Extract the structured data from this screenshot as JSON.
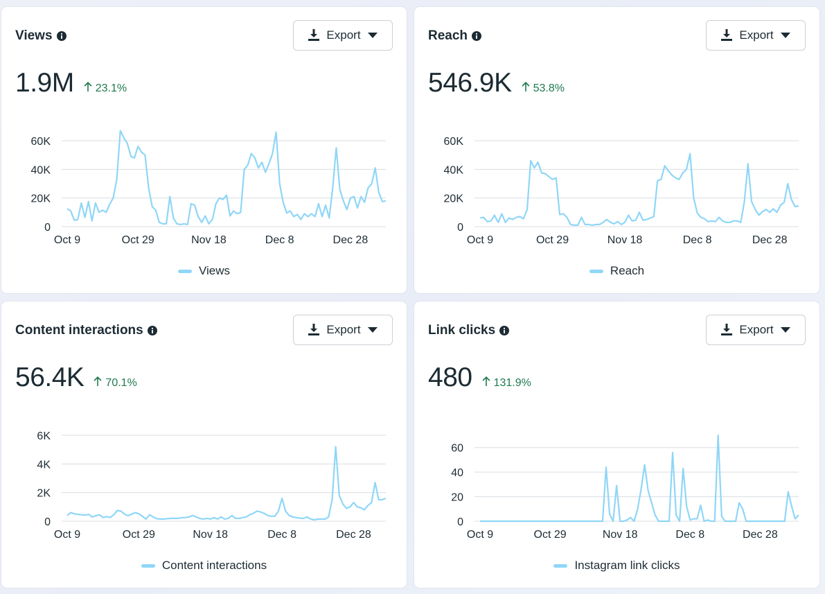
{
  "colors": {
    "line": "#8fd6f7",
    "grid": "#dadde1",
    "positive": "#1d7a4f"
  },
  "cards": [
    {
      "title": "Views",
      "export_label": "Export",
      "value": "1.9M",
      "change": "23.1%",
      "legend": "Views",
      "chart_data": {
        "type": "line",
        "ymax": 60000,
        "yticks": [
          0,
          20000,
          40000,
          60000
        ],
        "ytick_labels": [
          "0",
          "20K",
          "40K",
          "60K"
        ],
        "xtick_labels": [
          "Oct 9",
          "Oct 29",
          "Nov 18",
          "Dec 8",
          "Dec 28"
        ],
        "xtick_index": [
          0,
          20,
          40,
          60,
          80
        ],
        "series": [
          {
            "name": "Views",
            "values": [
              12500,
              11000,
              4500,
              5000,
              16500,
              6500,
              17500,
              4000,
              16500,
              10000,
              11500,
              10000,
              15500,
              20000,
              33000,
              67000,
              62000,
              58000,
              49000,
              48000,
              56000,
              52000,
              50000,
              27000,
              14000,
              11500,
              3000,
              2000,
              2000,
              21000,
              6000,
              2000,
              1500,
              2000,
              1500,
              16000,
              15000,
              7000,
              3000,
              7500,
              2000,
              5000,
              16000,
              20000,
              19000,
              22000,
              7500,
              11000,
              9000,
              10000,
              40000,
              43000,
              51000,
              48000,
              41000,
              45000,
              38000,
              44000,
              51000,
              66000,
              30000,
              17000,
              9500,
              11000,
              7000,
              8500,
              5000,
              9000,
              7000,
              9000,
              7000,
              16000,
              7000,
              15000,
              6000,
              27000,
              55000,
              26000,
              18000,
              12000,
              20000,
              21000,
              13000,
              21000,
              17000,
              27000,
              30000,
              41000,
              24000,
              17500,
              18000
            ]
          }
        ]
      }
    },
    {
      "title": "Reach",
      "export_label": "Export",
      "value": "546.9K",
      "change": "53.8%",
      "legend": "Reach",
      "chart_data": {
        "type": "line",
        "ymax": 60000,
        "yticks": [
          0,
          20000,
          40000,
          60000
        ],
        "ytick_labels": [
          "0",
          "20K",
          "40K",
          "60K"
        ],
        "xtick_labels": [
          "Oct 9",
          "Oct 29",
          "Nov 18",
          "Dec 8",
          "Dec 28"
        ],
        "xtick_index": [
          0,
          20,
          40,
          60,
          80
        ],
        "series": [
          {
            "name": "Reach",
            "values": [
              6000,
              6500,
              3500,
              4000,
              8000,
              3000,
              9000,
              3000,
              6000,
              5000,
              6500,
              7000,
              5500,
              12000,
              46000,
              41000,
              45000,
              37500,
              37000,
              35000,
              33000,
              34000,
              8500,
              9000,
              6500,
              1500,
              1000,
              1000,
              6500,
              1500,
              1500,
              1000,
              1500,
              1500,
              3000,
              5000,
              3000,
              2000,
              3500,
              1500,
              3000,
              8000,
              4000,
              4500,
              10000,
              4500,
              5000,
              6000,
              7000,
              32000,
              33000,
              42500,
              39000,
              36000,
              34000,
              33000,
              37500,
              40000,
              51000,
              20000,
              9500,
              6500,
              5500,
              3500,
              4000,
              3500,
              6500,
              4000,
              3000,
              3000,
              4000,
              4000,
              3000,
              17500,
              44000,
              17500,
              12000,
              8000,
              10500,
              12000,
              10000,
              12500,
              10000,
              15000,
              17000,
              30000,
              19000,
              14000,
              14500
            ]
          }
        ]
      }
    },
    {
      "title": "Content interactions",
      "export_label": "Export",
      "value": "56.4K",
      "change": "70.1%",
      "legend": "Content interactions",
      "chart_data": {
        "type": "line",
        "ymax": 6000,
        "yticks": [
          0,
          2000,
          4000,
          6000
        ],
        "ytick_labels": [
          "0",
          "2K",
          "4K",
          "6K"
        ],
        "xtick_labels": [
          "Oct 9",
          "Oct 29",
          "Nov 18",
          "Dec 8",
          "Dec 28"
        ],
        "xtick_index": [
          0,
          20,
          40,
          60,
          80
        ],
        "series": [
          {
            "name": "Content interactions",
            "values": [
              400,
              600,
              520,
              480,
              450,
              420,
              480,
              300,
              380,
              450,
              260,
              320,
              260,
              450,
              750,
              700,
              500,
              380,
              500,
              600,
              520,
              350,
              150,
              450,
              300,
              180,
              150,
              150,
              180,
              200,
              200,
              200,
              250,
              250,
              300,
              400,
              300,
              200,
              150,
              200,
              150,
              250,
              150,
              300,
              150,
              200,
              400,
              200,
              200,
              250,
              300,
              450,
              550,
              700,
              650,
              550,
              400,
              350,
              350,
              700,
              1600,
              700,
              400,
              300,
              250,
              220,
              200,
              300,
              150,
              100,
              150,
              150,
              150,
              300,
              1500,
              5200,
              1800,
              1200,
              900,
              1000,
              1300,
              1000,
              950,
              800,
              1100,
              1300,
              2700,
              1500,
              1500,
              1600
            ]
          }
        ]
      }
    },
    {
      "title": "Link clicks",
      "export_label": "Export",
      "value": "480",
      "change": "131.9%",
      "legend": "Instagram link clicks",
      "chart_data": {
        "type": "line",
        "ymax": 70,
        "yticks": [
          0,
          20,
          40,
          60
        ],
        "ytick_labels": [
          "0",
          "20",
          "40",
          "60"
        ],
        "xtick_labels": [
          "Oct 9",
          "Oct 29",
          "Nov 18",
          "Dec 8",
          "Dec 28"
        ],
        "xtick_index": [
          0,
          20,
          40,
          60,
          80
        ],
        "series": [
          {
            "name": "Instagram link clicks",
            "values": [
              0,
              0,
              0,
              0,
              0,
              0,
              0,
              0,
              0,
              0,
              0,
              0,
              0,
              0,
              0,
              0,
              0,
              0,
              0,
              0,
              0,
              0,
              0,
              0,
              0,
              0,
              0,
              0,
              0,
              0,
              0,
              0,
              0,
              0,
              0,
              0,
              44,
              6,
              0,
              29,
              0,
              0,
              1,
              3,
              0,
              10,
              26,
              46,
              25,
              15,
              5,
              0,
              0,
              0,
              0,
              56,
              5,
              0,
              43,
              12,
              1,
              2,
              2,
              13,
              0,
              1,
              0,
              0,
              70,
              4,
              0,
              0,
              0,
              0,
              15,
              10,
              0,
              0,
              0,
              0,
              0,
              0,
              0,
              0,
              0,
              0,
              0,
              0,
              24,
              12,
              2,
              5
            ]
          }
        ]
      }
    }
  ]
}
